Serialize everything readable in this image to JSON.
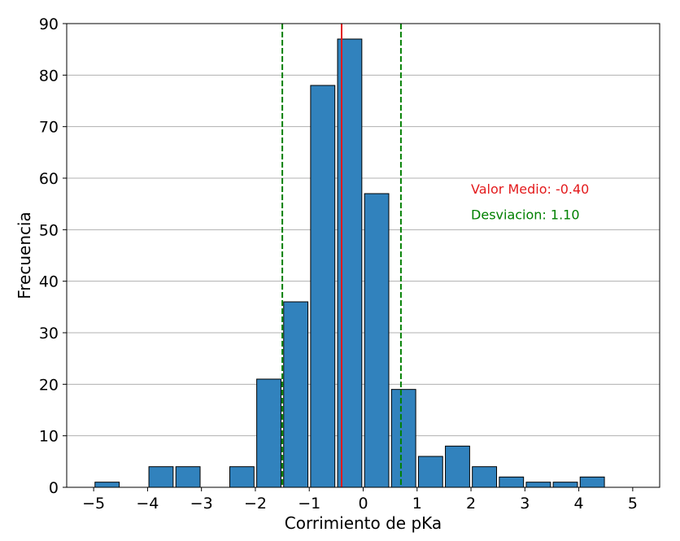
{
  "chart_data": {
    "type": "bar",
    "title": "",
    "xlabel": "Corrimiento de pKa",
    "ylabel": "Frecuencia",
    "xlim": [
      -5.5,
      5.5
    ],
    "ylim": [
      0,
      90
    ],
    "xticks": [
      -5,
      -4,
      -3,
      -2,
      -1,
      0,
      1,
      2,
      3,
      4,
      5
    ],
    "xtick_labels": [
      "−5",
      "−4",
      "−3",
      "−2",
      "−1",
      "0",
      "1",
      "2",
      "3",
      "4",
      "5"
    ],
    "yticks": [
      0,
      10,
      20,
      30,
      40,
      50,
      60,
      70,
      80,
      90
    ],
    "ytick_labels": [
      "0",
      "10",
      "20",
      "30",
      "40",
      "50",
      "60",
      "70",
      "80",
      "90"
    ],
    "grid": "horizontal",
    "bar_color": "#3182bd",
    "bar_edge_color": "#000000",
    "bins": [
      {
        "x_start": -5.0,
        "x_end": -4.5,
        "value": 1
      },
      {
        "x_start": -4.5,
        "x_end": -4.0,
        "value": 0
      },
      {
        "x_start": -4.0,
        "x_end": -3.5,
        "value": 4
      },
      {
        "x_start": -3.5,
        "x_end": -3.0,
        "value": 4
      },
      {
        "x_start": -3.0,
        "x_end": -2.5,
        "value": 0
      },
      {
        "x_start": -2.5,
        "x_end": -2.0,
        "value": 4
      },
      {
        "x_start": -2.0,
        "x_end": -1.5,
        "value": 21
      },
      {
        "x_start": -1.5,
        "x_end": -1.0,
        "value": 36
      },
      {
        "x_start": -1.0,
        "x_end": -0.5,
        "value": 78
      },
      {
        "x_start": -0.5,
        "x_end": 0.0,
        "value": 87
      },
      {
        "x_start": 0.0,
        "x_end": 0.5,
        "value": 57
      },
      {
        "x_start": 0.5,
        "x_end": 1.0,
        "value": 19
      },
      {
        "x_start": 1.0,
        "x_end": 1.5,
        "value": 6
      },
      {
        "x_start": 1.5,
        "x_end": 2.0,
        "value": 8
      },
      {
        "x_start": 2.0,
        "x_end": 2.5,
        "value": 4
      },
      {
        "x_start": 2.5,
        "x_end": 3.0,
        "value": 2
      },
      {
        "x_start": 3.0,
        "x_end": 3.5,
        "value": 1
      },
      {
        "x_start": 3.5,
        "x_end": 4.0,
        "value": 1
      },
      {
        "x_start": 4.0,
        "x_end": 4.5,
        "value": 2
      }
    ],
    "vlines": [
      {
        "x": -0.4,
        "color": "#e31a1c",
        "style": "solid"
      },
      {
        "x": -1.5,
        "color": "#008000",
        "style": "dashed"
      },
      {
        "x": 0.7,
        "color": "#008000",
        "style": "dashed"
      }
    ],
    "annotations": [
      {
        "text": "Valor Medio: -0.40",
        "color": "#e31a1c",
        "x": 2.0,
        "y": 57
      },
      {
        "text": "Desviacion: 1.10",
        "color": "#008000",
        "x": 2.0,
        "y": 52
      }
    ]
  }
}
